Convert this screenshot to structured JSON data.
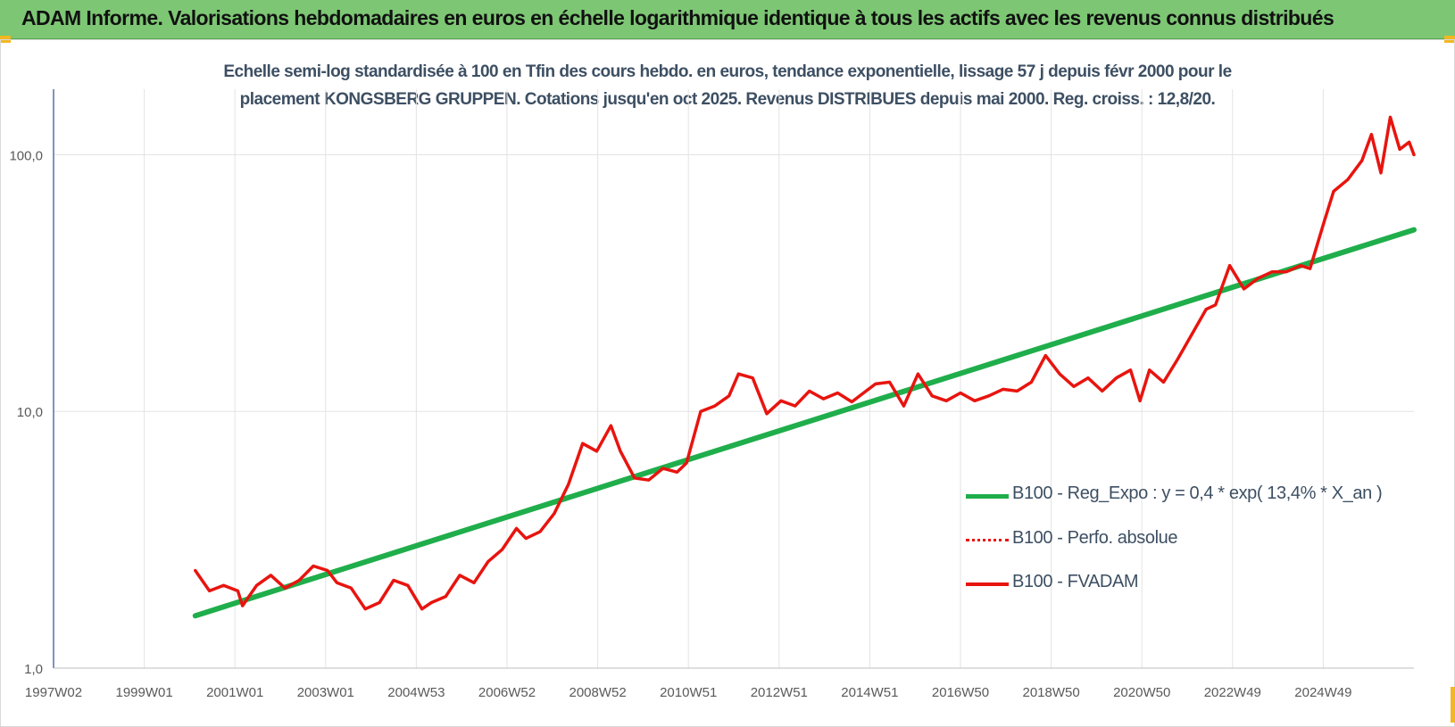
{
  "header": {
    "title": "ADAM Informe. Valorisations hebdomadaires en euros en échelle logarithmique identique à tous les actifs avec les revenus connus distribués"
  },
  "colors": {
    "banner": "#7dc774",
    "regression": "#1fae4b",
    "fvadam": "#e8140f",
    "perfo": "#e8140f",
    "grid": "#e3e3e3",
    "accent": "#f2b81f"
  },
  "chart_data": {
    "type": "line",
    "title": "Echelle semi-log standardisée à 100 en Tfin des cours hebdo. en euros, tendance exponentielle, lissage 57 j depuis févr 2000 pour le",
    "subtitle": "placement KONGSBERG GRUPPEN. Cotations jusqu'en oct 2025. Revenus DISTRIBUES depuis mai 2000. Reg. croiss. : 12,8/20.",
    "x_scale": "time (year)",
    "y_scale": "log",
    "xlim": [
      1997.0,
      2025.8
    ],
    "ylim": [
      1,
      180
    ],
    "x_tick_labels": [
      "1997W02",
      "1999W01",
      "2001W01",
      "2003W01",
      "2004W53",
      "2006W52",
      "2008W52",
      "2010W51",
      "2012W51",
      "2014W51",
      "2016W50",
      "2018W50",
      "2020W50",
      "2022W49",
      "2024W49"
    ],
    "y_tick_values": [
      1,
      10,
      100
    ],
    "y_tick_labels": [
      "1,0",
      "10,0",
      "100,0"
    ],
    "grid": true,
    "legend_position": "bottom-right",
    "series": [
      {
        "name": "B100 - Reg_Expo : y = 0,4 * exp( 13,4% *  X_an )",
        "style": "solid-thick",
        "x": [
          2000.0,
          2025.8
        ],
        "y": [
          1.6,
          51
        ]
      },
      {
        "name": "B100 - Perfo. absolue",
        "style": "dotted",
        "x": [],
        "y": []
      },
      {
        "name": "B100 - FVADAM",
        "style": "solid",
        "x": [
          2000.0,
          2000.3,
          2000.6,
          2000.9,
          2001.0,
          2001.3,
          2001.6,
          2001.9,
          2002.2,
          2002.5,
          2002.8,
          2003.0,
          2003.3,
          2003.6,
          2003.9,
          2004.2,
          2004.5,
          2004.8,
          2005.0,
          2005.3,
          2005.6,
          2005.9,
          2006.2,
          2006.5,
          2006.8,
          2007.0,
          2007.3,
          2007.6,
          2007.9,
          2008.2,
          2008.5,
          2008.8,
          2009.0,
          2009.3,
          2009.6,
          2009.9,
          2010.2,
          2010.4,
          2010.7,
          2011.0,
          2011.3,
          2011.5,
          2011.8,
          2012.1,
          2012.4,
          2012.7,
          2013.0,
          2013.3,
          2013.6,
          2013.9,
          2014.2,
          2014.4,
          2014.7,
          2015.0,
          2015.3,
          2015.6,
          2015.9,
          2016.2,
          2016.5,
          2016.8,
          2017.1,
          2017.4,
          2017.7,
          2018.0,
          2018.3,
          2018.6,
          2018.9,
          2019.2,
          2019.5,
          2019.8,
          2020.0,
          2020.2,
          2020.5,
          2020.8,
          2021.1,
          2021.4,
          2021.6,
          2021.9,
          2022.2,
          2022.5,
          2022.8,
          2023.1,
          2023.4,
          2023.6,
          2023.9,
          2024.1,
          2024.4,
          2024.7,
          2024.9,
          2025.1,
          2025.3,
          2025.5,
          2025.7,
          2025.8
        ],
        "y": [
          2.4,
          2.0,
          2.1,
          2.0,
          1.75,
          2.1,
          2.3,
          2.05,
          2.2,
          2.5,
          2.4,
          2.15,
          2.05,
          1.7,
          1.8,
          2.2,
          2.1,
          1.7,
          1.8,
          1.9,
          2.3,
          2.15,
          2.6,
          2.9,
          3.5,
          3.2,
          3.4,
          4.0,
          5.2,
          7.5,
          7.0,
          8.8,
          7.0,
          5.5,
          5.4,
          6.0,
          5.8,
          6.3,
          10.0,
          10.5,
          11.5,
          14.0,
          13.5,
          9.8,
          11.0,
          10.5,
          12.0,
          11.2,
          11.8,
          10.9,
          12.0,
          12.8,
          13.0,
          10.5,
          14.0,
          11.5,
          11.0,
          11.8,
          11.0,
          11.5,
          12.2,
          12.0,
          13.0,
          16.5,
          14.0,
          12.5,
          13.5,
          12.0,
          13.5,
          14.5,
          11.0,
          14.5,
          13.0,
          16.0,
          20.0,
          25.0,
          26.0,
          37.0,
          30.0,
          33.0,
          35.0,
          35.0,
          37.0,
          36.0,
          55.0,
          72.0,
          80.0,
          95.0,
          120.0,
          85.0,
          140.0,
          105.0,
          112.0,
          100.0
        ]
      }
    ]
  },
  "legend": {
    "items": [
      {
        "label": "B100 - Reg_Expo : y = 0,4 * exp( 13,4% *  X_an )"
      },
      {
        "label": "B100 - Perfo. absolue"
      },
      {
        "label": "B100 - FVADAM"
      }
    ]
  }
}
